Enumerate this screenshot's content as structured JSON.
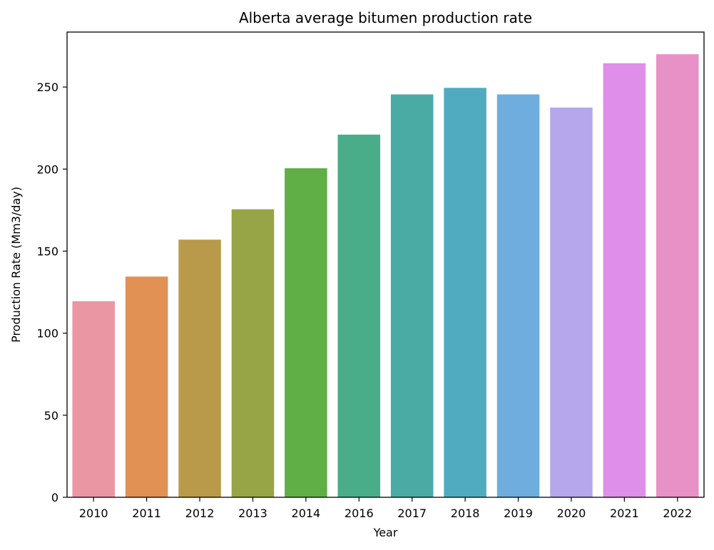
{
  "chart_data": {
    "type": "bar",
    "title": "Alberta average bitumen production rate",
    "xlabel": "Year",
    "ylabel": "Production Rate (Mm3/day)",
    "categories": [
      "2010",
      "2011",
      "2012",
      "2013",
      "2014",
      "2016",
      "2017",
      "2018",
      "2019",
      "2020",
      "2021",
      "2022"
    ],
    "values": [
      119.5,
      134.5,
      157.0,
      175.5,
      200.5,
      221.0,
      245.5,
      249.5,
      245.5,
      237.5,
      264.5,
      270.0
    ],
    "colors": [
      "#ea96a3",
      "#e19153",
      "#b89a4a",
      "#97a546",
      "#5fae46",
      "#49ad8a",
      "#4aaba4",
      "#51abc0",
      "#6eadde",
      "#b6a7ec",
      "#df8ee9",
      "#e891c6"
    ],
    "ylim": [
      0,
      283.5
    ],
    "yticks": [
      0,
      50,
      100,
      150,
      200,
      250
    ],
    "grid": false,
    "legend": "none"
  }
}
